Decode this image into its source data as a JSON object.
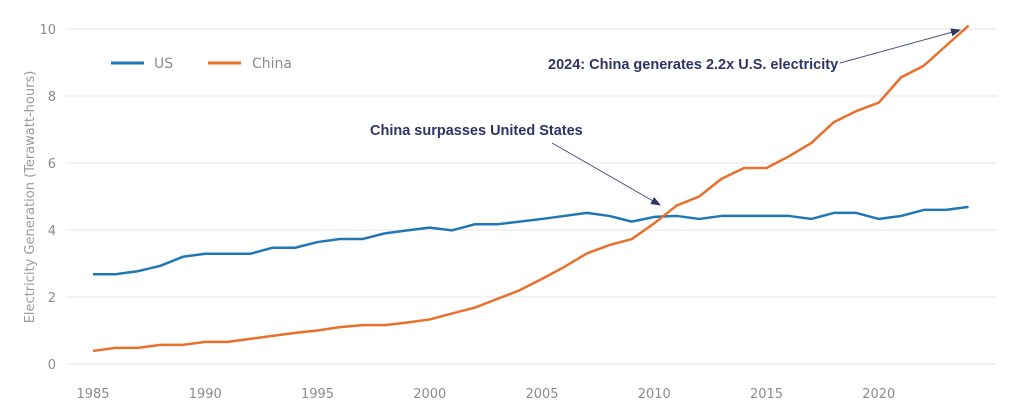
{
  "chart_data": {
    "type": "line",
    "title": "",
    "xlabel": "",
    "ylabel": "Electricity Generation (Terawatt-hours)",
    "xlim": [
      1985,
      2024
    ],
    "ylim": [
      0,
      10
    ],
    "grid": true,
    "legend_position": "top-left",
    "x_ticks": [
      "1985",
      "1990",
      "1995",
      "2000",
      "2005",
      "2010",
      "2015",
      "2020"
    ],
    "y_ticks": [
      "0",
      "2",
      "4",
      "6",
      "8",
      "10"
    ],
    "x": [
      1985,
      1986,
      1987,
      1988,
      1989,
      1990,
      1991,
      1992,
      1993,
      1994,
      1995,
      1996,
      1997,
      1998,
      1999,
      2000,
      2001,
      2002,
      2003,
      2004,
      2005,
      2006,
      2007,
      2008,
      2009,
      2010,
      2011,
      2012,
      2013,
      2014,
      2015,
      2016,
      2017,
      2018,
      2019,
      2020,
      2021,
      2022,
      2023,
      2024
    ],
    "series": [
      {
        "name": "US",
        "color": "#1f77b4",
        "values": [
          2.68,
          2.68,
          2.77,
          2.93,
          3.2,
          3.29,
          3.29,
          3.29,
          3.47,
          3.47,
          3.64,
          3.73,
          3.73,
          3.9,
          3.99,
          4.07,
          3.99,
          4.17,
          4.17,
          4.25,
          4.33,
          4.42,
          4.51,
          4.42,
          4.25,
          4.39,
          4.42,
          4.33,
          4.42,
          4.42,
          4.42,
          4.42,
          4.33,
          4.51,
          4.51,
          4.33,
          4.42,
          4.6,
          4.6,
          4.69
        ]
      },
      {
        "name": "China",
        "color": "#e8702a",
        "values": [
          0.39,
          0.48,
          0.48,
          0.57,
          0.57,
          0.66,
          0.66,
          0.75,
          0.84,
          0.93,
          1.0,
          1.1,
          1.16,
          1.16,
          1.24,
          1.33,
          1.51,
          1.68,
          1.94,
          2.2,
          2.54,
          2.9,
          3.3,
          3.55,
          3.73,
          4.2,
          4.73,
          5.0,
          5.53,
          5.85,
          5.85,
          6.2,
          6.6,
          7.22,
          7.55,
          7.8,
          8.56,
          8.9,
          9.5,
          10.1
        ]
      }
    ],
    "annotations": [
      {
        "text": "China surpasses United States",
        "points_to": {
          "x": 2010.5,
          "y": 4.45
        }
      },
      {
        "text": "2024: China generates 2.2x U.S. electricity",
        "points_to": {
          "x": 2024,
          "y": 10.0
        }
      }
    ]
  }
}
